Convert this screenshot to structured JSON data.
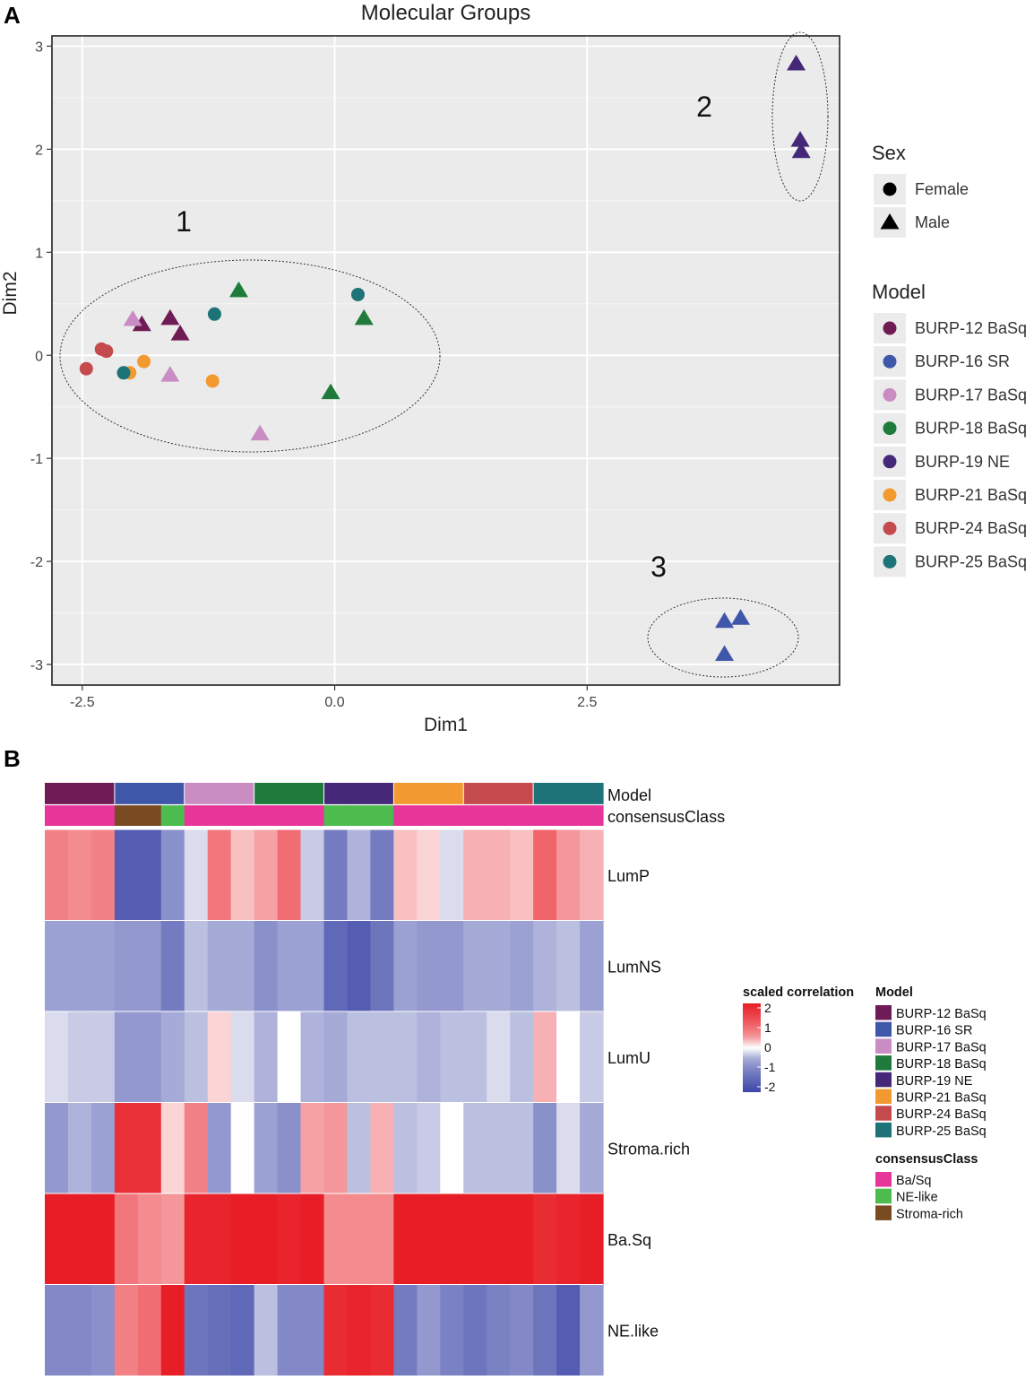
{
  "panels": {
    "a_label": "A",
    "b_label": "B"
  },
  "colors": {
    "BURP-12 BaSq": "#6f1b55",
    "BURP-16 SR": "#3f57a8",
    "BURP-17 BaSq": "#c98cc3",
    "BURP-18 BaSq": "#1e7b3c",
    "BURP-19 NE": "#452877",
    "BURP-21 BaSq": "#f29a30",
    "BURP-24 BaSq": "#c54a4e",
    "BURP-25 BaSq": "#1d7377",
    "Ba/Sq": "#e8359a",
    "NE-like": "#4dbc4f",
    "Stroma-rich": "#7a4a23"
  },
  "chart_data": [
    {
      "type": "scatter",
      "title": "Molecular Groups",
      "xlabel": "Dim1",
      "ylabel": "Dim2",
      "xlim": [
        -2.8,
        5.0
      ],
      "ylim": [
        -3.2,
        3.1
      ],
      "x_ticks": [
        -2.5,
        0.0,
        2.5
      ],
      "x_tick_labels": [
        "-2.5",
        "0.0",
        "2.5"
      ],
      "y_ticks": [
        -3,
        -2,
        -1,
        0,
        1,
        2,
        3
      ],
      "y_tick_labels": [
        "-3",
        "-2",
        "-1",
        "0",
        "1",
        "2",
        "3"
      ],
      "grid": true,
      "legend": {
        "placement": "right",
        "sex_title": "Sex",
        "sex_items": [
          {
            "label": "Female",
            "shape": "circle"
          },
          {
            "label": "Male",
            "shape": "triangle"
          }
        ],
        "model_title": "Model",
        "model_items": [
          "BURP-12 BaSq",
          "BURP-16 SR",
          "BURP-17 BaSq",
          "BURP-18 BaSq",
          "BURP-19 NE",
          "BURP-21 BaSq",
          "BURP-24 BaSq",
          "BURP-25 BaSq"
        ]
      },
      "group_labels": [
        "1",
        "2",
        "3"
      ],
      "points": [
        {
          "model": "BURP-12 BaSq",
          "sex": "Male",
          "x": -1.63,
          "y": 0.36
        },
        {
          "model": "BURP-12 BaSq",
          "sex": "Male",
          "x": -1.91,
          "y": 0.3
        },
        {
          "model": "BURP-12 BaSq",
          "sex": "Male",
          "x": -1.53,
          "y": 0.21
        },
        {
          "model": "BURP-16 SR",
          "sex": "Male",
          "x": 3.86,
          "y": -2.58
        },
        {
          "model": "BURP-16 SR",
          "sex": "Male",
          "x": 4.02,
          "y": -2.55
        },
        {
          "model": "BURP-16 SR",
          "sex": "Male",
          "x": 3.86,
          "y": -2.9
        },
        {
          "model": "BURP-17 BaSq",
          "sex": "Male",
          "x": -2.0,
          "y": 0.35
        },
        {
          "model": "BURP-17 BaSq",
          "sex": "Male",
          "x": -1.63,
          "y": -0.19
        },
        {
          "model": "BURP-17 BaSq",
          "sex": "Male",
          "x": -0.74,
          "y": -0.76
        },
        {
          "model": "BURP-18 BaSq",
          "sex": "Male",
          "x": -0.95,
          "y": 0.63
        },
        {
          "model": "BURP-18 BaSq",
          "sex": "Male",
          "x": 0.29,
          "y": 0.36
        },
        {
          "model": "BURP-18 BaSq",
          "sex": "Male",
          "x": -0.04,
          "y": -0.36
        },
        {
          "model": "BURP-19 NE",
          "sex": "Male",
          "x": 4.57,
          "y": 2.83
        },
        {
          "model": "BURP-19 NE",
          "sex": "Male",
          "x": 4.61,
          "y": 2.09
        },
        {
          "model": "BURP-19 NE",
          "sex": "Male",
          "x": 4.62,
          "y": 1.98
        },
        {
          "model": "BURP-21 BaSq",
          "sex": "Female",
          "x": -2.03,
          "y": -0.17
        },
        {
          "model": "BURP-21 BaSq",
          "sex": "Female",
          "x": -1.89,
          "y": -0.06
        },
        {
          "model": "BURP-21 BaSq",
          "sex": "Female",
          "x": -1.21,
          "y": -0.25
        },
        {
          "model": "BURP-24 BaSq",
          "sex": "Female",
          "x": -2.31,
          "y": 0.06
        },
        {
          "model": "BURP-24 BaSq",
          "sex": "Female",
          "x": -2.26,
          "y": 0.04
        },
        {
          "model": "BURP-24 BaSq",
          "sex": "Female",
          "x": -2.46,
          "y": -0.13
        },
        {
          "model": "BURP-25 BaSq",
          "sex": "Female",
          "x": -2.09,
          "y": -0.17
        },
        {
          "model": "BURP-25 BaSq",
          "sex": "Female",
          "x": -1.19,
          "y": 0.4
        },
        {
          "model": "BURP-25 BaSq",
          "sex": "Female",
          "x": 0.23,
          "y": 0.59
        }
      ]
    },
    {
      "type": "heatmap",
      "columns": 24,
      "model_track_label": "Model",
      "consensus_track_label": "consensusClass",
      "model_track": [
        "BURP-12 BaSq",
        "BURP-12 BaSq",
        "BURP-12 BaSq",
        "BURP-16 SR",
        "BURP-16 SR",
        "BURP-16 SR",
        "BURP-17 BaSq",
        "BURP-17 BaSq",
        "BURP-17 BaSq",
        "BURP-18 BaSq",
        "BURP-18 BaSq",
        "BURP-18 BaSq",
        "BURP-19 NE",
        "BURP-19 NE",
        "BURP-19 NE",
        "BURP-21 BaSq",
        "BURP-21 BaSq",
        "BURP-21 BaSq",
        "BURP-24 BaSq",
        "BURP-24 BaSq",
        "BURP-24 BaSq",
        "BURP-25 BaSq",
        "BURP-25 BaSq",
        "BURP-25 BaSq"
      ],
      "consensus_track": [
        "Ba/Sq",
        "Ba/Sq",
        "Ba/Sq",
        "Stroma-rich",
        "Stroma-rich",
        "NE-like",
        "Ba/Sq",
        "Ba/Sq",
        "Ba/Sq",
        "Ba/Sq",
        "Ba/Sq",
        "Ba/Sq",
        "NE-like",
        "NE-like",
        "NE-like",
        "Ba/Sq",
        "Ba/Sq",
        "Ba/Sq",
        "Ba/Sq",
        "Ba/Sq",
        "Ba/Sq",
        "Ba/Sq",
        "Ba/Sq",
        "Ba/Sq"
      ],
      "row_labels": [
        "LumP",
        "LumNS",
        "LumU",
        "Stroma.rich",
        "Ba.Sq",
        "NE.like"
      ],
      "scale_range": [
        -2,
        2
      ],
      "values": [
        [
          0.7,
          0.6,
          0.7,
          -1.6,
          -1.6,
          -0.8,
          -0.1,
          0.8,
          0.2,
          0.4,
          0.9,
          -0.2,
          -1.1,
          -0.4,
          -1.1,
          0.2,
          0.1,
          -0.1,
          0.3,
          0.3,
          0.2,
          1.0,
          0.5,
          0.3
        ],
        [
          -0.6,
          -0.6,
          -0.6,
          -0.7,
          -0.7,
          -1.1,
          -0.3,
          -0.5,
          -0.5,
          -0.8,
          -0.6,
          -0.6,
          -1.4,
          -1.6,
          -1.2,
          -0.6,
          -0.7,
          -0.7,
          -0.5,
          -0.5,
          -0.6,
          -0.4,
          -0.3,
          -0.6
        ],
        [
          -0.1,
          -0.2,
          -0.2,
          -0.7,
          -0.7,
          -0.5,
          -0.3,
          0.1,
          -0.1,
          -0.4,
          0.0,
          -0.4,
          -0.5,
          -0.3,
          -0.3,
          -0.3,
          -0.4,
          -0.3,
          -0.3,
          -0.1,
          -0.3,
          0.3,
          0.0,
          -0.2
        ],
        [
          -0.7,
          -0.4,
          -0.6,
          1.7,
          1.7,
          0.1,
          0.7,
          -0.7,
          0.0,
          -0.6,
          -0.8,
          0.4,
          0.5,
          -0.3,
          0.3,
          -0.3,
          -0.2,
          0.0,
          -0.3,
          -0.3,
          -0.3,
          -0.8,
          -0.1,
          -0.5
        ],
        [
          2.0,
          2.0,
          2.0,
          0.8,
          0.6,
          0.5,
          1.9,
          1.9,
          2.0,
          2.0,
          1.9,
          2.0,
          0.6,
          0.6,
          0.6,
          2.0,
          2.0,
          2.0,
          2.0,
          2.0,
          2.0,
          1.8,
          1.9,
          2.0
        ],
        [
          -0.9,
          -0.9,
          -0.8,
          0.7,
          0.9,
          2.0,
          -1.2,
          -1.3,
          -1.4,
          -0.3,
          -0.9,
          -0.9,
          1.8,
          1.9,
          1.8,
          -1.1,
          -0.7,
          -1.0,
          -1.2,
          -1.0,
          -0.9,
          -1.2,
          -1.6,
          -0.7
        ]
      ],
      "legend": {
        "scale_title": "scaled correlation",
        "scale_ticks": [
          "2",
          "1",
          "0",
          "-1",
          "-2"
        ],
        "model_title": "Model",
        "model_items": [
          "BURP-12 BaSq",
          "BURP-16 SR",
          "BURP-17 BaSq",
          "BURP-18 BaSq",
          "BURP-19 NE",
          "BURP-21 BaSq",
          "BURP-24 BaSq",
          "BURP-25 BaSq"
        ],
        "consensus_title": "consensusClass",
        "consensus_items": [
          "Ba/Sq",
          "NE-like",
          "Stroma-rich"
        ]
      }
    }
  ]
}
